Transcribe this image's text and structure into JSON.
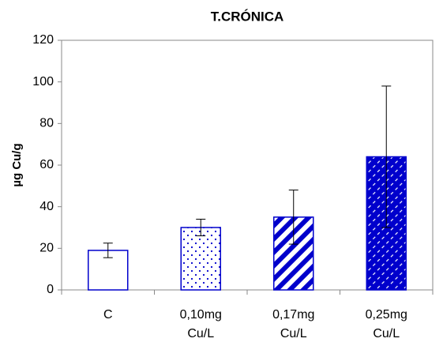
{
  "chart_data": {
    "type": "bar",
    "title": "T.CRÓNICA",
    "y_label": "µg Cu/g",
    "categories": [
      "C",
      "0,10mg Cu/L",
      "0,17mg Cu/L",
      "0,25mg Cu/L"
    ],
    "values": [
      19,
      30,
      35,
      64
    ],
    "errors": [
      3.5,
      4,
      13,
      34
    ],
    "color": "#0000cc",
    "patterns": [
      "none",
      "dots",
      "stripes",
      "hatch"
    ],
    "ylim": [
      0,
      120
    ],
    "yticks": [
      0,
      20,
      40,
      60,
      80,
      100,
      120
    ],
    "grid": false
  }
}
